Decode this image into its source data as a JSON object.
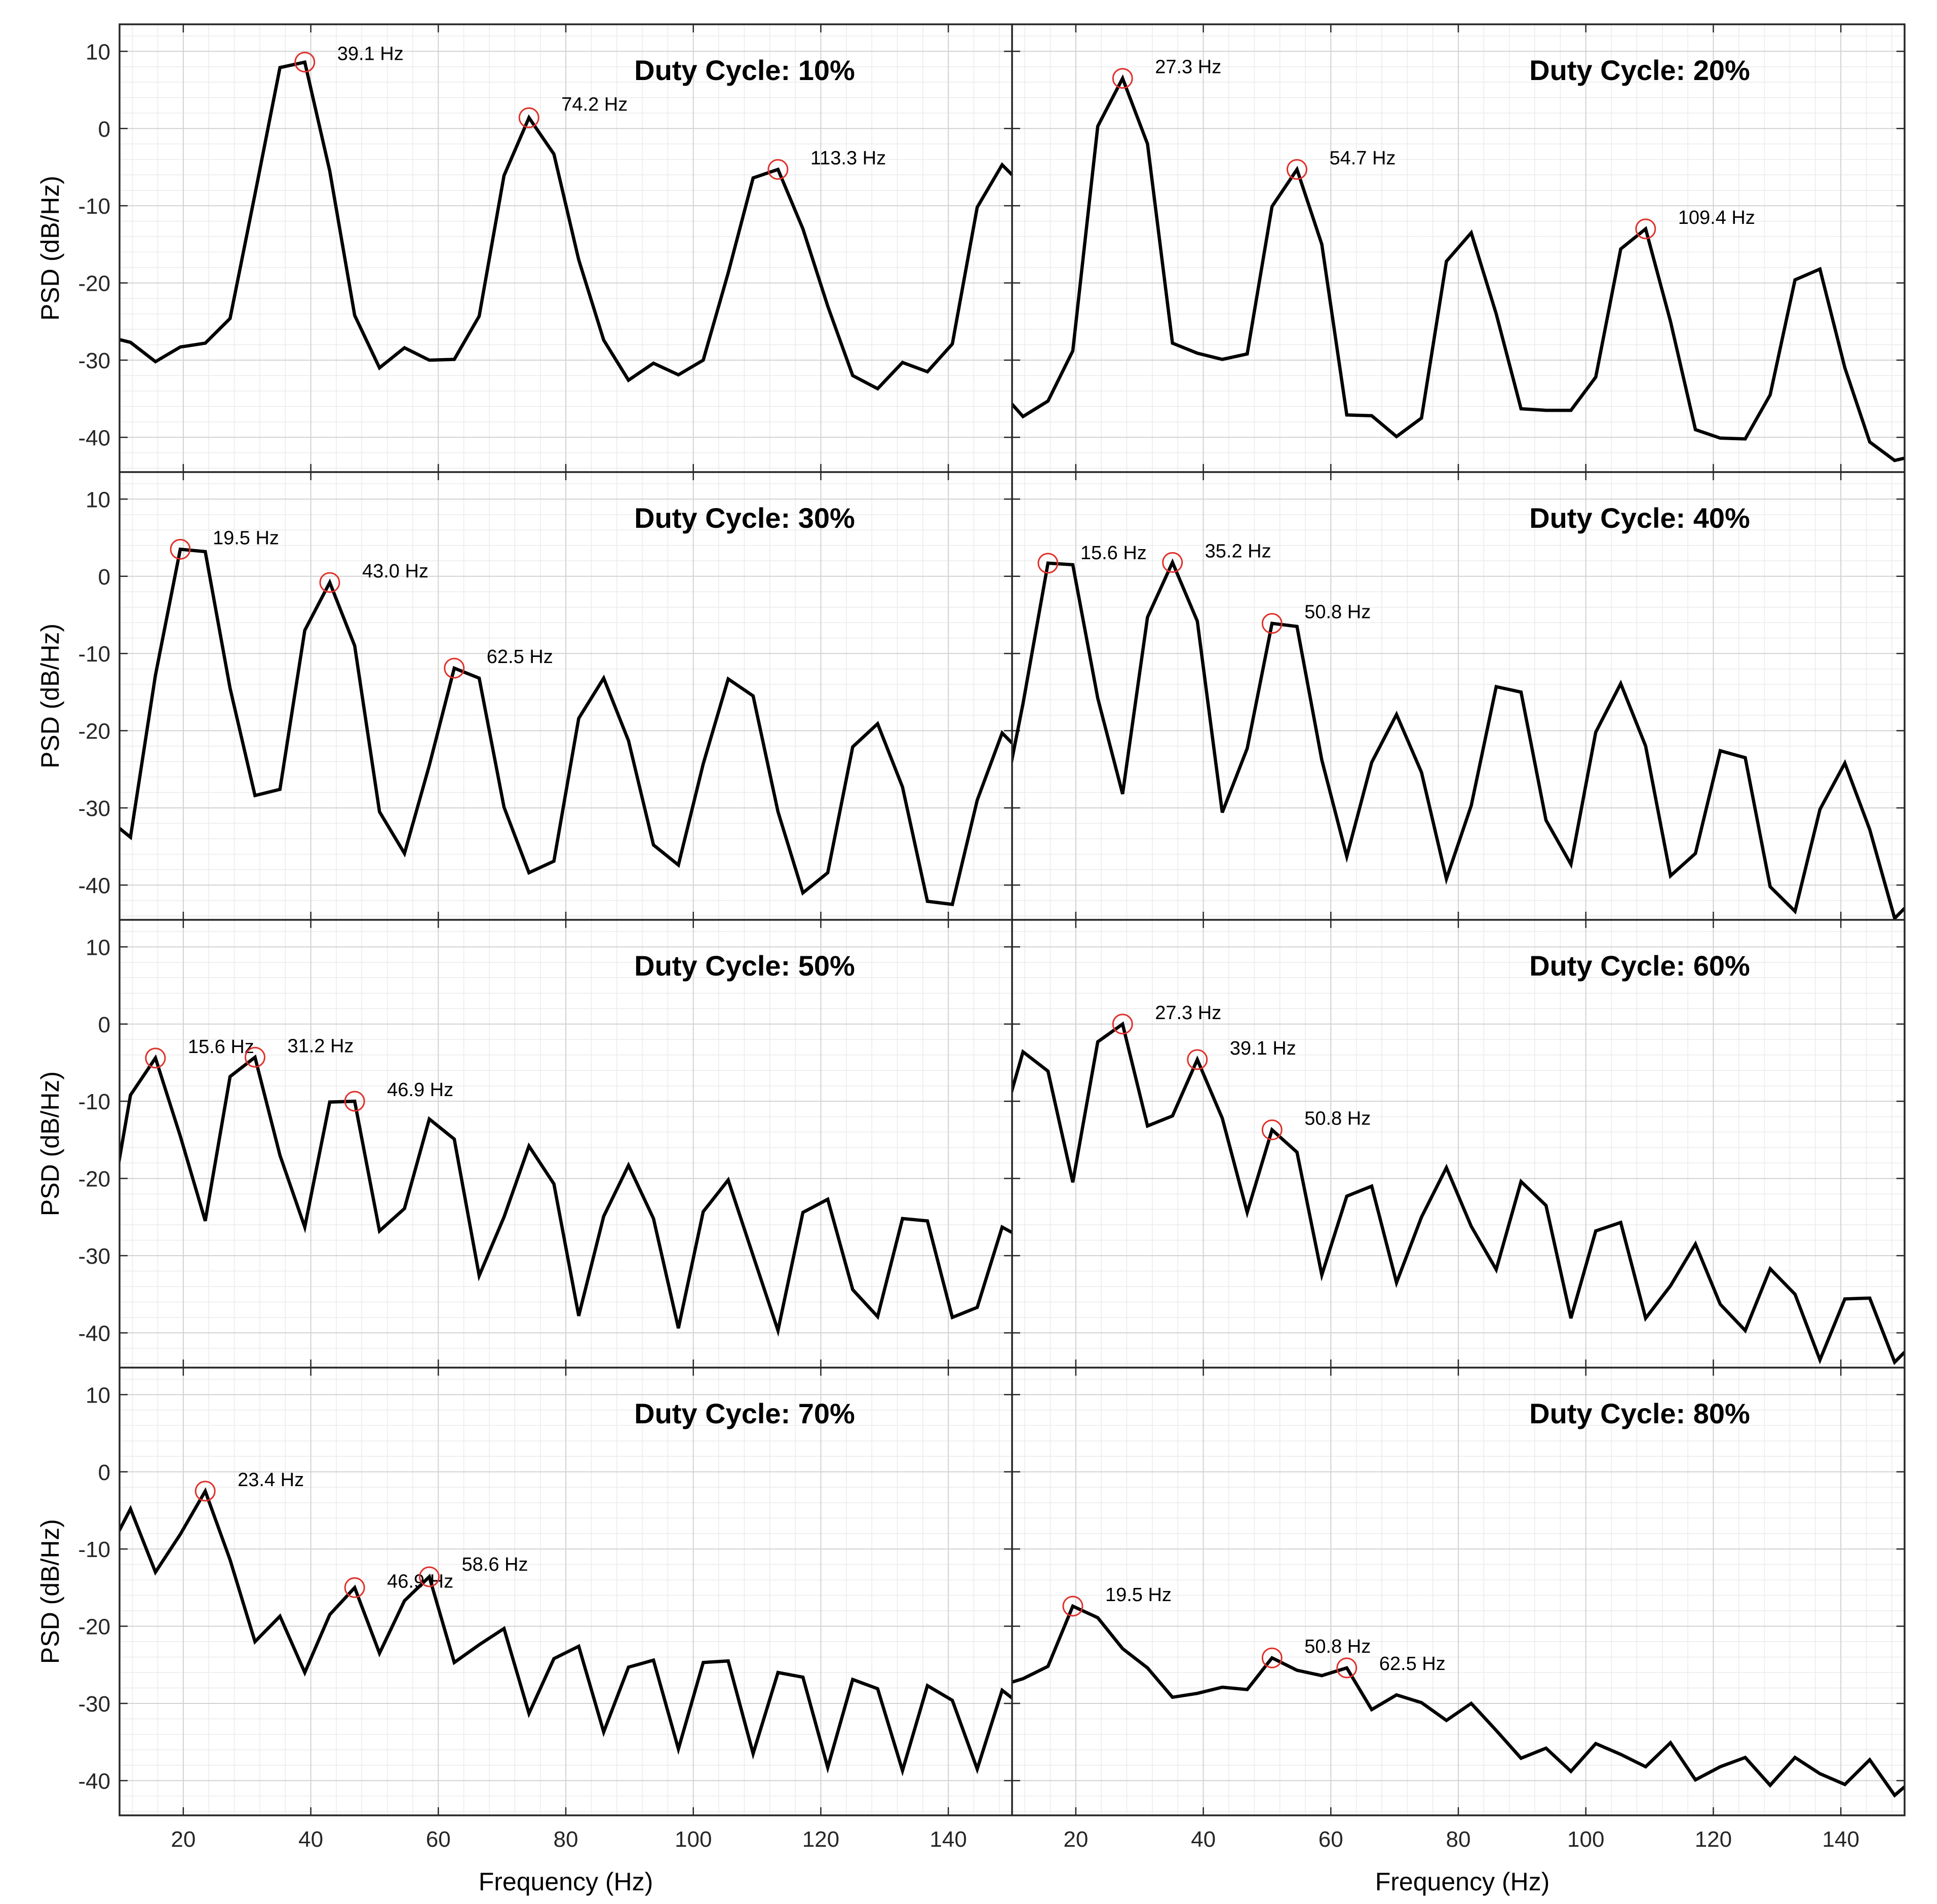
{
  "figure": {
    "xlabel": "Frequency (Hz)",
    "ylabel": "PSD (dB/Hz)"
  },
  "colors": {
    "line": "#000000",
    "marker": "#e0302a",
    "axis": "#262626",
    "grid_major": "#d2d2d2",
    "grid_minor": "#ebebeb",
    "background": "#ffffff"
  },
  "chart_data": [
    {
      "type": "line",
      "title": "Duty Cycle: 10%",
      "xlabel": "Frequency (Hz)",
      "ylabel": "PSD (dB/Hz)",
      "xlim": [
        10,
        150
      ],
      "ylim": [
        -44.5,
        13.5
      ],
      "xticks": [
        20,
        40,
        60,
        80,
        100,
        120,
        140
      ],
      "yticks": [
        10,
        0,
        -10,
        -20,
        -30,
        -40
      ],
      "grid": true,
      "x": [
        9.77,
        11.72,
        15.63,
        19.53,
        23.44,
        27.34,
        31.25,
        35.16,
        39.06,
        42.97,
        46.88,
        50.78,
        54.69,
        58.59,
        62.5,
        66.41,
        70.31,
        74.22,
        78.13,
        82.03,
        85.94,
        89.84,
        93.75,
        97.66,
        101.56,
        105.47,
        109.38,
        113.28,
        117.19,
        121.09,
        125.0,
        128.91,
        132.81,
        136.72,
        140.63,
        144.53,
        148.44,
        150.0
      ],
      "y": [
        -27.3,
        -27.7,
        -30.2,
        -28.3,
        -27.8,
        -24.6,
        -8.5,
        7.9,
        8.6,
        -5.5,
        -24.2,
        -31.0,
        -28.4,
        -30.0,
        -29.9,
        -24.3,
        -6.1,
        1.4,
        -3.3,
        -17.0,
        -27.4,
        -32.6,
        -30.4,
        -31.9,
        -30.0,
        -18.7,
        -6.4,
        -5.3,
        -13.0,
        -23.0,
        -32.0,
        -33.7,
        -30.3,
        -31.5,
        -27.9,
        -10.2,
        -4.7,
        -6.0
      ],
      "peaks": [
        {
          "f": 39.06,
          "db": 8.6,
          "label": "39.1 Hz"
        },
        {
          "f": 74.22,
          "db": 1.4,
          "label": "74.2 Hz"
        },
        {
          "f": 113.28,
          "db": -5.3,
          "label": "113.3 Hz"
        }
      ]
    },
    {
      "type": "line",
      "title": "Duty Cycle: 20%",
      "xlabel": "Frequency (Hz)",
      "ylabel": "PSD (dB/Hz)",
      "xlim": [
        10,
        150
      ],
      "ylim": [
        -44.5,
        13.5
      ],
      "xticks": [
        20,
        40,
        60,
        80,
        100,
        120,
        140
      ],
      "yticks": [
        10,
        0,
        -10,
        -20,
        -30,
        -40
      ],
      "grid": true,
      "x": [
        9.77,
        11.72,
        15.63,
        19.53,
        23.44,
        27.34,
        31.25,
        35.16,
        39.06,
        42.97,
        46.88,
        50.78,
        54.69,
        58.59,
        62.5,
        66.41,
        70.31,
        74.22,
        78.13,
        82.03,
        85.94,
        89.84,
        93.75,
        97.66,
        101.56,
        105.47,
        109.38,
        113.28,
        117.19,
        121.09,
        125.0,
        128.91,
        132.81,
        136.72,
        140.63,
        144.53,
        148.44,
        150.0
      ],
      "y": [
        -35.5,
        -37.3,
        -35.3,
        -28.8,
        0.3,
        6.5,
        -2.0,
        -27.8,
        -29.1,
        -29.9,
        -29.2,
        -10.1,
        -5.3,
        -15.0,
        -37.1,
        -37.2,
        -39.9,
        -37.5,
        -17.2,
        -13.5,
        -24.0,
        -36.3,
        -36.5,
        -36.5,
        -32.2,
        -15.6,
        -13.0,
        -25.0,
        -39.0,
        -40.1,
        -40.2,
        -34.5,
        -19.6,
        -18.2,
        -31.0,
        -40.6,
        -43.0,
        -42.7
      ],
      "peaks": [
        {
          "f": 27.34,
          "db": 6.5,
          "label": "27.3 Hz"
        },
        {
          "f": 54.69,
          "db": -5.3,
          "label": "54.7 Hz"
        },
        {
          "f": 109.38,
          "db": -13.0,
          "label": "109.4 Hz"
        }
      ]
    },
    {
      "type": "line",
      "title": "Duty Cycle: 30%",
      "xlabel": "Frequency (Hz)",
      "ylabel": "PSD (dB/Hz)",
      "xlim": [
        10,
        150
      ],
      "ylim": [
        -44.5,
        13.5
      ],
      "xticks": [
        20,
        40,
        60,
        80,
        100,
        120,
        140
      ],
      "yticks": [
        10,
        0,
        -10,
        -20,
        -30,
        -40
      ],
      "grid": true,
      "x": [
        9.77,
        11.72,
        15.63,
        19.53,
        23.44,
        27.34,
        31.25,
        35.16,
        39.06,
        42.97,
        46.88,
        50.78,
        54.69,
        58.59,
        62.5,
        66.41,
        70.31,
        74.22,
        78.13,
        82.03,
        85.94,
        89.84,
        93.75,
        97.66,
        101.56,
        105.47,
        109.38,
        113.28,
        117.19,
        121.09,
        125.0,
        128.91,
        132.81,
        136.72,
        140.63,
        144.53,
        148.44,
        150.0
      ],
      "y": [
        -32.5,
        -33.8,
        -12.8,
        3.5,
        3.2,
        -14.5,
        -28.4,
        -27.6,
        -7.0,
        -0.8,
        -9.0,
        -30.5,
        -35.9,
        -24.5,
        -11.9,
        -13.2,
        -29.9,
        -38.4,
        -36.9,
        -18.4,
        -13.2,
        -21.3,
        -34.8,
        -37.4,
        -24.3,
        -13.3,
        -15.5,
        -30.5,
        -41.0,
        -38.4,
        -22.1,
        -19.1,
        -27.3,
        -42.1,
        -42.5,
        -29.0,
        -20.3,
        -21.6
      ],
      "peaks": [
        {
          "f": 19.53,
          "db": 3.5,
          "label": "19.5 Hz"
        },
        {
          "f": 42.97,
          "db": -0.8,
          "label": "43.0 Hz"
        },
        {
          "f": 62.5,
          "db": -11.9,
          "label": "62.5 Hz"
        }
      ]
    },
    {
      "type": "line",
      "title": "Duty Cycle: 40%",
      "xlabel": "Frequency (Hz)",
      "ylabel": "PSD (dB/Hz)",
      "xlim": [
        10,
        150
      ],
      "ylim": [
        -44.5,
        13.5
      ],
      "xticks": [
        20,
        40,
        60,
        80,
        100,
        120,
        140
      ],
      "yticks": [
        10,
        0,
        -10,
        -20,
        -30,
        -40
      ],
      "grid": true,
      "x": [
        9.77,
        11.72,
        15.63,
        19.53,
        23.44,
        27.34,
        31.25,
        35.16,
        39.06,
        42.97,
        46.88,
        50.78,
        54.69,
        58.59,
        62.5,
        66.41,
        70.31,
        74.22,
        78.13,
        82.03,
        85.94,
        89.84,
        93.75,
        97.66,
        101.56,
        105.47,
        109.38,
        113.28,
        117.19,
        121.09,
        125.0,
        128.91,
        132.81,
        136.72,
        140.63,
        144.53,
        148.44,
        150.0
      ],
      "y": [
        -24.6,
        -16.5,
        1.7,
        1.5,
        -15.8,
        -28.2,
        -5.3,
        1.8,
        -5.8,
        -30.6,
        -22.3,
        -6.1,
        -6.5,
        -23.8,
        -36.3,
        -24.1,
        -17.9,
        -25.4,
        -39.2,
        -29.7,
        -14.3,
        -15.0,
        -31.6,
        -37.3,
        -20.2,
        -13.9,
        -22.0,
        -38.8,
        -35.9,
        -22.6,
        -23.5,
        -40.2,
        -43.4,
        -30.2,
        -24.2,
        -32.8,
        -44.3,
        -43.0
      ],
      "peaks": [
        {
          "f": 15.63,
          "db": 1.7,
          "label": "15.6 Hz"
        },
        {
          "f": 35.16,
          "db": 1.8,
          "label": "35.2 Hz"
        },
        {
          "f": 50.78,
          "db": -6.1,
          "label": "50.8 Hz"
        }
      ]
    },
    {
      "type": "line",
      "title": "Duty Cycle: 50%",
      "xlabel": "Frequency (Hz)",
      "ylabel": "PSD (dB/Hz)",
      "xlim": [
        10,
        150
      ],
      "ylim": [
        -44.5,
        13.5
      ],
      "xticks": [
        20,
        40,
        60,
        80,
        100,
        120,
        140
      ],
      "yticks": [
        10,
        0,
        -10,
        -20,
        -30,
        -40
      ],
      "grid": true,
      "x": [
        9.77,
        11.72,
        15.63,
        19.53,
        23.44,
        27.34,
        31.25,
        35.16,
        39.06,
        42.97,
        46.88,
        50.78,
        54.69,
        58.59,
        62.5,
        66.41,
        70.31,
        74.22,
        78.13,
        82.03,
        85.94,
        89.84,
        93.75,
        97.66,
        101.56,
        105.47,
        109.38,
        113.28,
        117.19,
        121.09,
        125.0,
        128.91,
        132.81,
        136.72,
        140.63,
        144.53,
        148.44,
        150.0
      ],
      "y": [
        -18.5,
        -9.2,
        -4.4,
        -14.5,
        -25.5,
        -6.8,
        -4.3,
        -17.0,
        -26.3,
        -10.1,
        -10.0,
        -26.8,
        -23.9,
        -12.3,
        -14.9,
        -32.6,
        -25.0,
        -15.8,
        -20.7,
        -37.8,
        -24.9,
        -18.3,
        -25.2,
        -39.4,
        -24.3,
        -20.2,
        -30.0,
        -39.7,
        -24.4,
        -22.7,
        -34.4,
        -37.9,
        -25.2,
        -25.5,
        -38.0,
        -36.7,
        -26.3,
        -27.0
      ],
      "peaks": [
        {
          "f": 15.63,
          "db": -4.4,
          "label": "15.6 Hz"
        },
        {
          "f": 31.25,
          "db": -4.3,
          "label": "31.2 Hz"
        },
        {
          "f": 46.88,
          "db": -10.0,
          "label": "46.9 Hz"
        }
      ]
    },
    {
      "type": "line",
      "title": "Duty Cycle: 60%",
      "xlabel": "Frequency (Hz)",
      "ylabel": "PSD (dB/Hz)",
      "xlim": [
        10,
        150
      ],
      "ylim": [
        -44.5,
        13.5
      ],
      "xticks": [
        20,
        40,
        60,
        80,
        100,
        120,
        140
      ],
      "yticks": [
        10,
        0,
        -10,
        -20,
        -30,
        -40
      ],
      "grid": true,
      "x": [
        9.77,
        11.72,
        15.63,
        19.53,
        23.44,
        27.34,
        31.25,
        35.16,
        39.06,
        42.97,
        46.88,
        50.78,
        54.69,
        58.59,
        62.5,
        66.41,
        70.31,
        74.22,
        78.13,
        82.03,
        85.94,
        89.84,
        93.75,
        97.66,
        101.56,
        105.47,
        109.38,
        113.28,
        117.19,
        121.09,
        125.0,
        128.91,
        132.81,
        136.72,
        140.63,
        144.53,
        148.44,
        150.0
      ],
      "y": [
        -9.2,
        -3.6,
        -6.1,
        -20.5,
        -2.3,
        0.0,
        -13.2,
        -11.9,
        -4.6,
        -12.2,
        -24.4,
        -13.7,
        -16.6,
        -32.5,
        -22.3,
        -21.0,
        -33.5,
        -25.0,
        -18.6,
        -26.2,
        -31.8,
        -20.4,
        -23.5,
        -38.1,
        -26.8,
        -25.7,
        -38.1,
        -33.9,
        -28.5,
        -36.3,
        -39.7,
        -31.7,
        -35.0,
        -43.5,
        -35.6,
        -35.5,
        -43.8,
        -42.5
      ],
      "peaks": [
        {
          "f": 27.34,
          "db": 0.0,
          "label": "27.3 Hz"
        },
        {
          "f": 39.06,
          "db": -4.6,
          "label": "39.1 Hz"
        },
        {
          "f": 50.78,
          "db": -13.7,
          "label": "50.8 Hz"
        }
      ]
    },
    {
      "type": "line",
      "title": "Duty Cycle: 70%",
      "xlabel": "Frequency (Hz)",
      "ylabel": "PSD (dB/Hz)",
      "xlim": [
        10,
        150
      ],
      "ylim": [
        -44.5,
        13.5
      ],
      "xticks": [
        20,
        40,
        60,
        80,
        100,
        120,
        140
      ],
      "yticks": [
        10,
        0,
        -10,
        -20,
        -30,
        -40
      ],
      "grid": true,
      "x": [
        9.77,
        11.72,
        15.63,
        19.53,
        23.44,
        27.34,
        31.25,
        35.16,
        39.06,
        42.97,
        46.88,
        50.78,
        54.69,
        58.59,
        62.5,
        66.41,
        70.31,
        74.22,
        78.13,
        82.03,
        85.94,
        89.84,
        93.75,
        97.66,
        101.56,
        105.47,
        109.38,
        113.28,
        117.19,
        121.09,
        125.0,
        128.91,
        132.81,
        136.72,
        140.63,
        144.53,
        148.44,
        150.0
      ],
      "y": [
        -7.9,
        -4.8,
        -13.0,
        -8.1,
        -2.5,
        -11.4,
        -22.0,
        -18.7,
        -26.0,
        -18.5,
        -15.0,
        -23.5,
        -16.7,
        -13.6,
        -24.7,
        -22.4,
        -20.3,
        -31.3,
        -24.2,
        -22.6,
        -33.7,
        -25.3,
        -24.4,
        -35.9,
        -24.7,
        -24.5,
        -36.5,
        -26.0,
        -26.6,
        -38.3,
        -26.9,
        -28.1,
        -38.7,
        -27.7,
        -29.6,
        -38.5,
        -28.3,
        -29.3
      ],
      "peaks": [
        {
          "f": 23.44,
          "db": -2.5,
          "label": "23.4 Hz"
        },
        {
          "f": 46.88,
          "db": -15.0,
          "label": "46.9 Hz"
        },
        {
          "f": 58.59,
          "db": -13.6,
          "label": "58.6 Hz"
        }
      ]
    },
    {
      "type": "line",
      "title": "Duty Cycle: 80%",
      "xlabel": "Frequency (Hz)",
      "ylabel": "PSD (dB/Hz)",
      "xlim": [
        10,
        150
      ],
      "ylim": [
        -44.5,
        13.5
      ],
      "xticks": [
        20,
        40,
        60,
        80,
        100,
        120,
        140
      ],
      "yticks": [
        10,
        0,
        -10,
        -20,
        -30,
        -40
      ],
      "grid": true,
      "x": [
        9.77,
        11.72,
        15.63,
        19.53,
        23.44,
        27.34,
        31.25,
        35.16,
        39.06,
        42.97,
        46.88,
        50.78,
        54.69,
        58.59,
        62.5,
        66.41,
        70.31,
        74.22,
        78.13,
        82.03,
        85.94,
        89.84,
        93.75,
        97.66,
        101.56,
        105.47,
        109.38,
        113.28,
        117.19,
        121.09,
        125.0,
        128.91,
        132.81,
        136.72,
        140.63,
        144.53,
        148.44,
        150.0
      ],
      "y": [
        -27.3,
        -26.8,
        -25.2,
        -17.4,
        -18.9,
        -22.9,
        -25.4,
        -29.2,
        -28.7,
        -27.9,
        -28.2,
        -24.1,
        -25.7,
        -26.4,
        -25.4,
        -30.8,
        -28.9,
        -29.9,
        -32.2,
        -30.0,
        -33.5,
        -37.1,
        -35.8,
        -38.8,
        -35.2,
        -36.6,
        -38.2,
        -35.1,
        -39.9,
        -38.2,
        -37.0,
        -40.6,
        -37.0,
        -39.1,
        -40.5,
        -37.3,
        -41.9,
        -40.8
      ],
      "peaks": [
        {
          "f": 19.53,
          "db": -17.4,
          "label": "19.5 Hz"
        },
        {
          "f": 50.78,
          "db": -24.1,
          "label": "50.8 Hz"
        },
        {
          "f": 62.5,
          "db": -25.4,
          "label": "62.5 Hz"
        }
      ]
    }
  ]
}
